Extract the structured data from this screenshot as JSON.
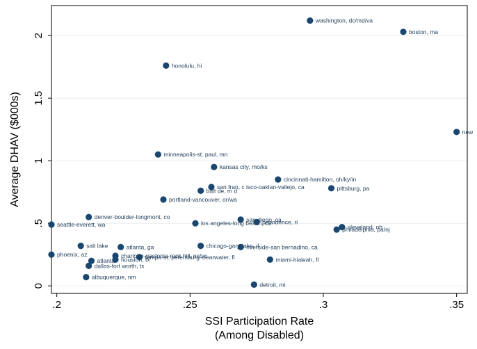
{
  "chart_data": {
    "type": "scatter",
    "xlabel": [
      "SSI Participation Rate",
      "(Among Disabled)"
    ],
    "ylabel": "Average DHAV ($000s)",
    "xlim": [
      0.198,
      0.354
    ],
    "ylim": [
      -0.06,
      2.24
    ],
    "xticks": [
      0.2,
      0.25,
      0.3,
      0.35
    ],
    "xtick_labels": [
      ".2",
      ".25",
      ".3",
      ".35"
    ],
    "yticks": [
      0,
      0.5,
      1,
      1.5,
      2
    ],
    "ytick_labels": [
      "0",
      ".5",
      "1",
      "1.5",
      "2"
    ],
    "grid": "horizontal",
    "marker_color": "#1a476f",
    "points": [
      {
        "label": "washington, dc/md/va",
        "x": 0.295,
        "y": 2.12
      },
      {
        "label": "boston, ma",
        "x": 0.33,
        "y": 2.03
      },
      {
        "label": "honolulu, hi",
        "x": 0.241,
        "y": 1.76
      },
      {
        "label": "new",
        "x": 0.35,
        "y": 1.23
      },
      {
        "label": "minneapolis-st. paul, mn",
        "x": 0.238,
        "y": 1.05
      },
      {
        "label": "kansas city, mo/ks",
        "x": 0.259,
        "y": 0.95
      },
      {
        "label": "cincinnati-hamilton, oh/ky/in",
        "x": 0.283,
        "y": 0.85
      },
      {
        "label": "san fran, c isco-oaklan-vallejo, ca",
        "x": 0.258,
        "y": 0.79
      },
      {
        "label": "pittsburg, pa",
        "x": 0.303,
        "y": 0.78
      },
      {
        "label": "balt de, m d",
        "x": 0.254,
        "y": 0.76
      },
      {
        "label": "portland-vancouver, or/wa",
        "x": 0.24,
        "y": 0.69
      },
      {
        "label": "denver-boulder-longmont, co",
        "x": 0.212,
        "y": 0.55
      },
      {
        "label": "san diego, ca",
        "x": 0.269,
        "y": 0.53
      },
      {
        "label": "providence, ri",
        "x": 0.275,
        "y": 0.51
      },
      {
        "label": "los angeles-long beach, ca",
        "x": 0.252,
        "y": 0.5
      },
      {
        "label": "seattle-everett, wa",
        "x": 0.198,
        "y": 0.49
      },
      {
        "label": "cleveland, oh",
        "x": 0.307,
        "y": 0.47
      },
      {
        "label": "philadelphia, pa/nj",
        "x": 0.305,
        "y": 0.45
      },
      {
        "label": "salt lake",
        "x": 0.209,
        "y": 0.32
      },
      {
        "label": "chicago-gary-lake, il",
        "x": 0.254,
        "y": 0.32
      },
      {
        "label": "atlanta, ga",
        "x": 0.224,
        "y": 0.31
      },
      {
        "label": "riverside-san bernadino, ca",
        "x": 0.269,
        "y": 0.31
      },
      {
        "label": "phoenix, az",
        "x": 0.198,
        "y": 0.25
      },
      {
        "label": "charlotte-gastonia-rock hill, nc/sc",
        "x": 0.222,
        "y": 0.24
      },
      {
        "label": "tampa-st. petersburg-clearwater, fl",
        "x": 0.231,
        "y": 0.23
      },
      {
        "label": "houston, tx",
        "x": 0.222,
        "y": 0.21
      },
      {
        "label": "miami-hialeah, fl",
        "x": 0.28,
        "y": 0.21
      },
      {
        "label": "atlanta",
        "x": 0.213,
        "y": 0.2
      },
      {
        "label": "dallas-fort worth, tx",
        "x": 0.212,
        "y": 0.16
      },
      {
        "label": "albuquerque, nm",
        "x": 0.211,
        "y": 0.07
      },
      {
        "label": "detroit, mi",
        "x": 0.274,
        "y": 0.01
      }
    ]
  }
}
